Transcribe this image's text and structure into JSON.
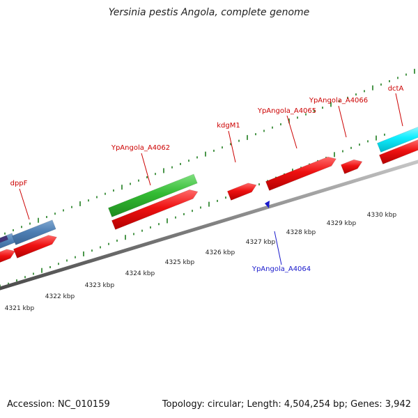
{
  "title": "Yersinia pestis Angola, complete genome",
  "footer": {
    "accession": "Accession: NC_010159",
    "info": "Topology: circular; Length: 4,504,254 bp; Genes: 3,942"
  },
  "colors": {
    "backbone": "#808080",
    "tick": "#1e7d1e",
    "red_feature": "#ee1111",
    "green_feature": "#33bb33",
    "blue_feature": "#4f80b5",
    "cyan_feature": "#11eeff",
    "dark_feature": "#443377",
    "label_red": "#cc0000",
    "label_blue": "#1a1acc"
  },
  "scale_labels": [
    "4321 kbp",
    "4322 kbp",
    "4323 kbp",
    "4324 kbp",
    "4325 kbp",
    "4326 kbp",
    "4327 kbp",
    "4328 kbp",
    "4329 kbp",
    "4330 kbp"
  ],
  "gene_labels": [
    {
      "name": "dppF",
      "color": "red"
    },
    {
      "name": "YpAngola_A4062",
      "color": "red"
    },
    {
      "name": "kdgM1",
      "color": "red"
    },
    {
      "name": "YpAngola_A4065",
      "color": "red"
    },
    {
      "name": "YpAngola_A4066",
      "color": "red"
    },
    {
      "name": "dctA",
      "color": "red"
    },
    {
      "name": "YpAngola_A4064",
      "color": "blue"
    }
  ]
}
